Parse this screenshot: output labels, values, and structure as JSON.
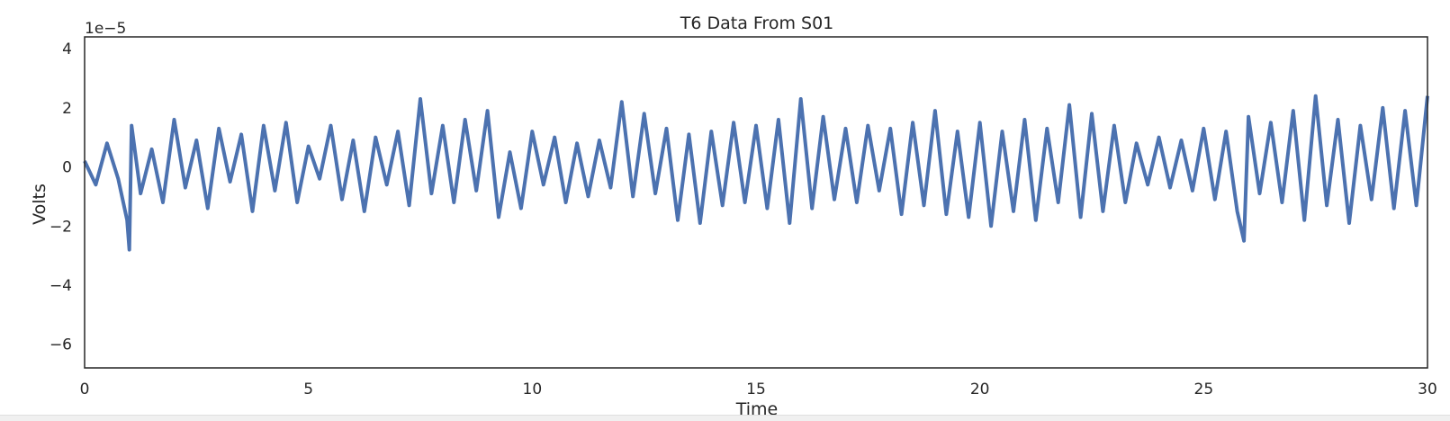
{
  "chart_data": {
    "type": "line",
    "title": "T6 Data From S01",
    "xlabel": "Time",
    "ylabel": "Volts",
    "y_offset_label": "1e−5",
    "xlim": [
      0,
      30
    ],
    "ylim": [
      -6.8,
      4.4
    ],
    "y_scale_factor": 1e-05,
    "x_ticks": [
      0,
      5,
      10,
      15,
      20,
      25,
      30
    ],
    "x_tick_labels": [
      "0",
      "5",
      "10",
      "15",
      "20",
      "25",
      "30"
    ],
    "y_ticks": [
      4,
      2,
      0,
      -2,
      -4,
      -6
    ],
    "y_tick_labels": [
      "4",
      "2",
      "0",
      "−2",
      "−4",
      "−6"
    ],
    "grid": false,
    "legend": "none",
    "series": [
      {
        "color": "#4c72b0",
        "x": [
          0,
          0.25,
          0.5,
          0.75,
          0.95,
          1.0,
          1.05,
          1.25,
          1.5,
          1.75,
          2.0,
          2.25,
          2.5,
          2.75,
          3.0,
          3.25,
          3.5,
          3.75,
          4.0,
          4.25,
          4.5,
          4.75,
          5.0,
          5.25,
          5.5,
          5.75,
          6.0,
          6.25,
          6.5,
          6.75,
          7.0,
          7.25,
          7.5,
          7.75,
          8.0,
          8.25,
          8.5,
          8.75,
          9.0,
          9.25,
          9.5,
          9.75,
          10.0,
          10.25,
          10.5,
          10.75,
          11.0,
          11.25,
          11.5,
          11.75,
          12.0,
          12.25,
          12.5,
          12.75,
          13.0,
          13.25,
          13.5,
          13.75,
          14.0,
          14.25,
          14.5,
          14.75,
          15.0,
          15.25,
          15.5,
          15.75,
          16.0,
          16.25,
          16.5,
          16.75,
          17.0,
          17.25,
          17.5,
          17.75,
          18.0,
          18.25,
          18.5,
          18.75,
          19.0,
          19.25,
          19.5,
          19.75,
          20.0,
          20.25,
          20.5,
          20.75,
          21.0,
          21.25,
          21.5,
          21.75,
          22.0,
          22.25,
          22.5,
          22.75,
          23.0,
          23.25,
          23.5,
          23.75,
          24.0,
          24.25,
          24.5,
          24.75,
          25.0,
          25.25,
          25.5,
          25.75,
          25.9,
          26.0,
          26.25,
          26.5,
          26.75,
          27.0,
          27.25,
          27.5,
          27.75,
          28.0,
          28.25,
          28.5,
          28.75,
          29.0,
          29.25,
          29.5,
          29.75,
          30.0
        ],
        "y": [
          0.2,
          -0.6,
          0.8,
          -0.4,
          -1.8,
          -2.8,
          1.4,
          -0.9,
          0.6,
          -1.2,
          1.6,
          -0.7,
          0.9,
          -1.4,
          1.3,
          -0.5,
          1.1,
          -1.5,
          1.4,
          -0.8,
          1.5,
          -1.2,
          0.7,
          -0.4,
          1.4,
          -1.1,
          0.9,
          -1.5,
          1.0,
          -0.6,
          1.2,
          -1.3,
          2.3,
          -0.9,
          1.4,
          -1.2,
          1.6,
          -0.8,
          1.9,
          -1.7,
          0.5,
          -1.4,
          1.2,
          -0.6,
          1.0,
          -1.2,
          0.8,
          -1.0,
          0.9,
          -0.7,
          2.2,
          -1.0,
          1.8,
          -0.9,
          1.3,
          -1.8,
          1.1,
          -1.9,
          1.2,
          -1.3,
          1.5,
          -1.2,
          1.4,
          -1.4,
          1.6,
          -1.9,
          2.3,
          -1.4,
          1.7,
          -1.1,
          1.3,
          -1.2,
          1.4,
          -0.8,
          1.3,
          -1.6,
          1.5,
          -1.3,
          1.9,
          -1.6,
          1.2,
          -1.7,
          1.5,
          -2.0,
          1.2,
          -1.5,
          1.6,
          -1.8,
          1.3,
          -1.2,
          2.1,
          -1.7,
          1.8,
          -1.5,
          1.4,
          -1.2,
          0.8,
          -0.6,
          1.0,
          -0.7,
          0.9,
          -0.8,
          1.3,
          -1.1,
          1.2,
          -1.5,
          -2.5,
          1.7,
          -0.9,
          1.5,
          -1.2,
          1.9,
          -1.8,
          2.4,
          -1.3,
          1.6,
          -1.9,
          1.4,
          -1.1,
          2.0,
          -1.4,
          1.9,
          -1.3,
          2.4
        ]
      }
    ]
  }
}
